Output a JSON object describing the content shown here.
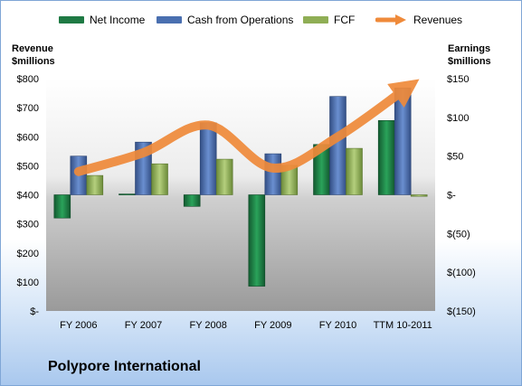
{
  "footer": {
    "title": "Polypore International"
  },
  "axes": {
    "left_title_line1": "Revenue",
    "left_title_line2": "$millions",
    "right_title_line1": "Earnings",
    "right_title_line2": "$millions"
  },
  "legend": [
    {
      "label": "Net Income",
      "color": "#1f7a44"
    },
    {
      "label": "Cash from Operations",
      "color": "#4a6fb0"
    },
    {
      "label": "FCF",
      "color": "#8fae55"
    },
    {
      "label": "Revenues",
      "color": "#ef8a3a"
    }
  ],
  "chart_data": {
    "type": "bar",
    "categories": [
      "FY 2006",
      "FY 2007",
      "FY 2008",
      "FY 2009",
      "FY 2010",
      "TTM 10-2011"
    ],
    "series": [
      {
        "name": "Net Income",
        "axis": "right",
        "values": [
          -30,
          1,
          -15,
          -118,
          65,
          96
        ]
      },
      {
        "name": "Cash from Operations",
        "axis": "right",
        "values": [
          50,
          68,
          93,
          53,
          127,
          138
        ]
      },
      {
        "name": "FCF",
        "axis": "right",
        "values": [
          25,
          40,
          46,
          38,
          60,
          -2
        ]
      },
      {
        "name": "Revenues",
        "axis": "left",
        "type": "line",
        "values": [
          480,
          545,
          640,
          492,
          600,
          758
        ]
      }
    ],
    "left_axis": {
      "title": "Revenue $millions",
      "ylim": [
        0,
        800
      ],
      "ticks": [
        "$-",
        "$100",
        "$200",
        "$300",
        "$400",
        "$500",
        "$600",
        "$700",
        "$800"
      ]
    },
    "right_axis": {
      "title": "Earnings $millions",
      "ylim": [
        -150,
        150
      ],
      "ticks": [
        "$(150)",
        "$(100)",
        "$(50)",
        "$-",
        "$50",
        "$100",
        "$150"
      ]
    },
    "legend_position": "top",
    "grid": false
  }
}
